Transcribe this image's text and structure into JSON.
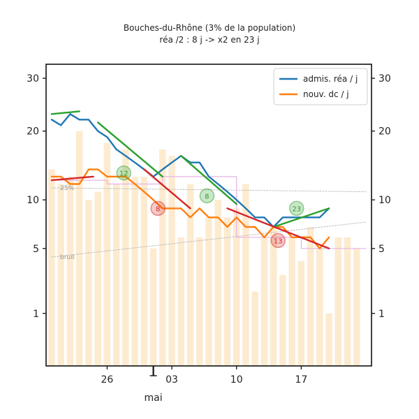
{
  "chart_data": {
    "type": "line",
    "title": "Bouches-du-Rhône (3% de la population)",
    "subtitle": "réa /2 : 8 j -> x2 en 23 j",
    "xlabel": "mai",
    "ylabel": "",
    "x_range": [
      0,
      34
    ],
    "x_ticks": [
      {
        "day": 6,
        "label": "26"
      },
      {
        "day": 13,
        "label": "03"
      },
      {
        "day": 20,
        "label": "10"
      },
      {
        "day": 27,
        "label": "17"
      }
    ],
    "month_marker_day": 11,
    "y_scale": "sqrt",
    "ylim": [
      0,
      33
    ],
    "y_ticks": [
      1,
      5,
      10,
      20,
      30
    ],
    "bars": {
      "name": "nouv. dc / j (quotidien)",
      "color": "#fdebd0",
      "days": [
        0,
        1,
        2,
        3,
        4,
        5,
        6,
        7,
        8,
        9,
        10,
        11,
        12,
        13,
        14,
        15,
        16,
        17,
        18,
        19,
        20,
        21,
        22,
        23,
        24,
        25,
        26,
        27,
        28,
        29,
        30,
        31,
        32,
        33
      ],
      "values": [
        14,
        12,
        13,
        20,
        10,
        11,
        18,
        12,
        17,
        13,
        13,
        5,
        17,
        16,
        6,
        12,
        6,
        8,
        10,
        8,
        9,
        12,
        2,
        6,
        7,
        3,
        6,
        4,
        7,
        5,
        1,
        6,
        6,
        5
      ]
    },
    "series": [
      {
        "name": "admis. réa / j",
        "color": "#1f77b4",
        "x": [
          0,
          1,
          2,
          3,
          4,
          5,
          6,
          7,
          8,
          9,
          10,
          11,
          12,
          13,
          14,
          15,
          16,
          17,
          18,
          19,
          20,
          21,
          22,
          23,
          24,
          25,
          26,
          27,
          28,
          29,
          30
        ],
        "values": [
          22,
          21,
          23,
          22,
          22,
          20,
          19,
          17,
          16,
          15,
          14,
          13,
          14,
          15,
          16,
          15,
          15,
          13,
          12,
          11,
          10,
          9,
          8,
          8,
          7,
          8,
          8,
          8,
          8,
          8,
          9
        ]
      },
      {
        "name": "nouv. dc / j",
        "color": "#ff7f0e",
        "x": [
          0,
          1,
          2,
          3,
          4,
          5,
          6,
          7,
          8,
          9,
          10,
          11,
          12,
          13,
          14,
          15,
          16,
          17,
          18,
          19,
          20,
          21,
          22,
          23,
          24,
          25,
          26,
          27,
          28,
          29,
          30
        ],
        "values": [
          13,
          13,
          12,
          12,
          14,
          14,
          13,
          13,
          13,
          12,
          11,
          10,
          9,
          9,
          9,
          8,
          9,
          8,
          8,
          7,
          8,
          7,
          7,
          6,
          7,
          7,
          6,
          6,
          6,
          5,
          6
        ]
      }
    ],
    "trend_lines": [
      {
        "color": "#2ca02c",
        "x": [
          0,
          3
        ],
        "values": [
          23,
          23.5
        ]
      },
      {
        "color": "#2ca02c",
        "x": [
          5,
          12
        ],
        "values": [
          21.5,
          13
        ]
      },
      {
        "color": "#2ca02c",
        "x": [
          14,
          20
        ],
        "values": [
          16,
          9.5
        ]
      },
      {
        "color": "#2ca02c",
        "x": [
          24,
          30
        ],
        "values": [
          7,
          9
        ]
      },
      {
        "color": "#d62728",
        "x": [
          0,
          4.5
        ],
        "values": [
          12.5,
          13
        ]
      },
      {
        "color": "#d62728",
        "x": [
          10,
          15
        ],
        "values": [
          14,
          9
        ]
      },
      {
        "color": "#d62728",
        "x": [
          19,
          30
        ],
        "values": [
          9,
          5
        ]
      }
    ],
    "threshold_lines": [
      {
        "label": "25%",
        "color": "#bdbdbd",
        "x": [
          0,
          34
        ],
        "values": [
          11.5,
          11
        ]
      },
      {
        "label": "bruit",
        "color": "#bdbdbd",
        "x": [
          0,
          34
        ],
        "values": [
          4.3,
          7.5
        ]
      }
    ],
    "band_lines": [
      {
        "color": "#e6b3e6",
        "x": [
          0,
          6,
          6,
          12,
          12,
          20,
          20,
          27,
          27,
          34
        ],
        "values": [
          12.5,
          12.5,
          12,
          12,
          13,
          13,
          6,
          6,
          5,
          5
        ]
      }
    ],
    "annotations": [
      {
        "label": "12",
        "x": 7.8,
        "y": 13.5,
        "color": "#2ca02c"
      },
      {
        "label": "8",
        "x": 16.8,
        "y": 10.5,
        "color": "#2ca02c"
      },
      {
        "label": "23",
        "x": 26.5,
        "y": 9.0,
        "color": "#2ca02c"
      },
      {
        "label": "8",
        "x": 11.5,
        "y": 9.0,
        "color": "#d62728"
      },
      {
        "label": "13",
        "x": 24.5,
        "y": 5.7,
        "color": "#d62728"
      }
    ],
    "legend": {
      "position": "top-right",
      "entries": [
        {
          "label": "admis. réa / j",
          "color": "#1f77b4"
        },
        {
          "label": "nouv. dc / j",
          "color": "#ff7f0e"
        }
      ]
    }
  }
}
